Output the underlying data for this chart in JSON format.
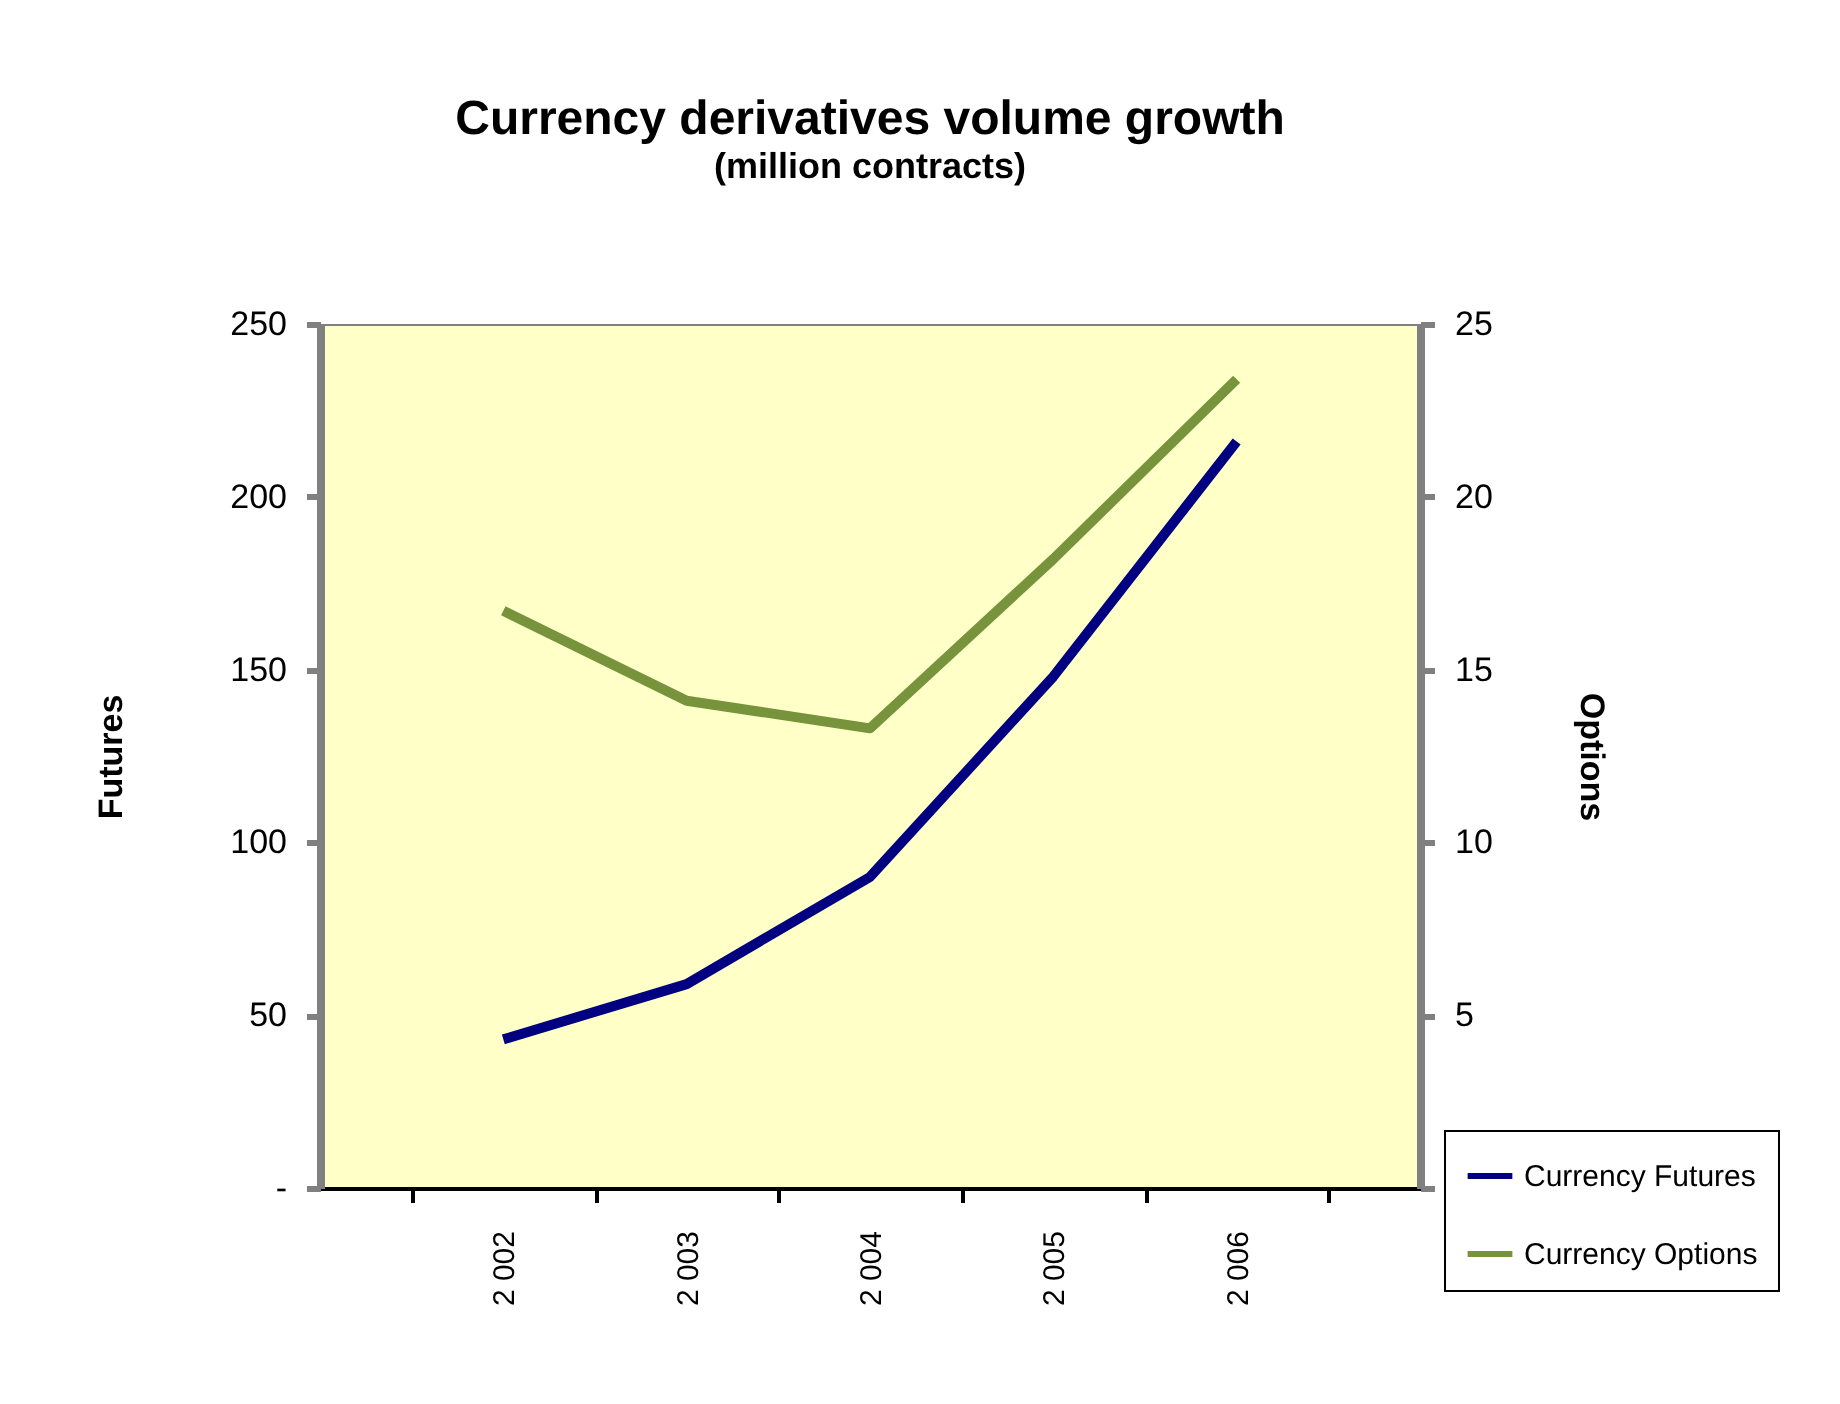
{
  "chart_data": {
    "type": "line",
    "title": "Currency derivatives volume growth",
    "subtitle": "(million contracts)",
    "categories": [
      "2 002",
      "2 003",
      "2 004",
      "2 005",
      "2 006"
    ],
    "series": [
      {
        "name": "Currency Futures",
        "color": "#000080",
        "values": [
          43,
          59,
          90,
          148,
          216
        ]
      },
      {
        "name": "Currency Options",
        "color": "#77933c",
        "axis": "y2",
        "values": [
          16.7,
          14.1,
          13.3,
          18.2,
          23.4
        ]
      }
    ],
    "ylabel": "Futures",
    "y2label": "Options",
    "ylim": [
      0,
      250
    ],
    "yticks": [
      {
        "value": 0,
        "label": "-"
      },
      50,
      100,
      150,
      200,
      250
    ],
    "y2lim": [
      0,
      25
    ],
    "y2ticks": [
      {
        "value": 0,
        "label": null
      },
      5,
      10,
      15,
      20,
      25
    ],
    "grid": false,
    "legend": "bottom right",
    "marker": "none",
    "line_style": "solid"
  }
}
